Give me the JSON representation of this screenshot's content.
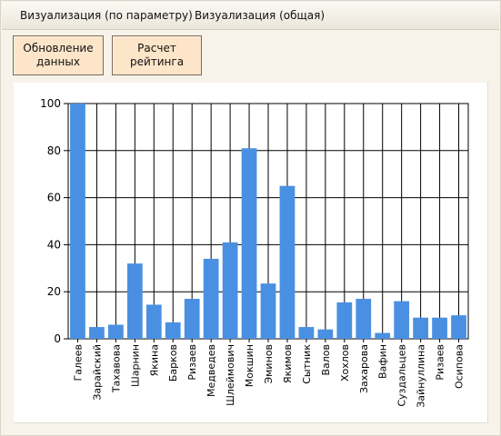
{
  "menu": {
    "tabs": [
      {
        "label": "Визуализация (по параметру)"
      },
      {
        "label": "Визуализация (общая)"
      }
    ]
  },
  "toolbar": {
    "update_label": "Обновление\nданных",
    "rating_label": "Расчет\nрейтинга"
  },
  "colors": {
    "bar": "#4a90e2",
    "button_bg": "#fde5c9"
  },
  "chart_data": {
    "type": "bar",
    "categories": [
      "Галеев",
      "Зарайский",
      "Тахавова",
      "Шарнин",
      "Якина",
      "Барков",
      "Ризаев",
      "Медведев",
      "Шлеймович",
      "Мокшин",
      "Эминов",
      "Якимов",
      "Сытник",
      "Валов",
      "Хохлов",
      "Захарова",
      "Вафин",
      "Суздальцев",
      "Зайнуллина",
      "Ризаев",
      "Осипова"
    ],
    "values": [
      100,
      5,
      6,
      32,
      14.5,
      7,
      17,
      34,
      41,
      81,
      23.5,
      65,
      5,
      4,
      15.5,
      17,
      2.5,
      16,
      9,
      9,
      10
    ],
    "yticks": [
      "0",
      "20",
      "40",
      "60",
      "80",
      "100"
    ],
    "ylim": [
      0,
      100
    ],
    "grid": "vertical lines at categories, horizontal at ticks"
  }
}
